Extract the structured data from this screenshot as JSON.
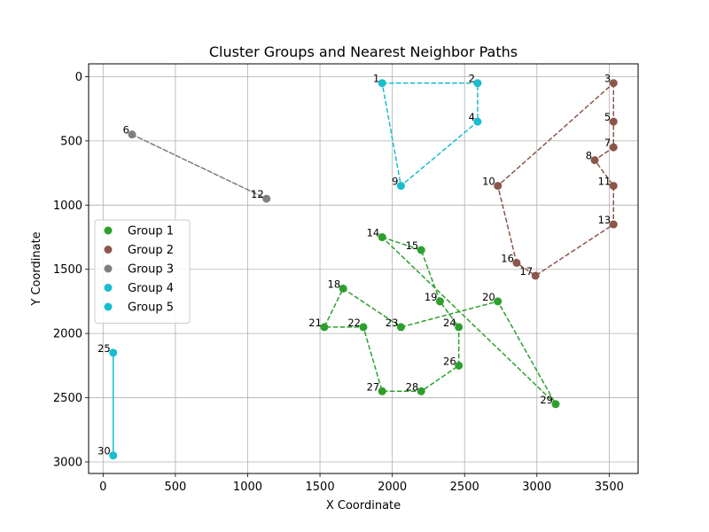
{
  "chart_data": {
    "type": "scatter",
    "title": "Cluster Groups and Nearest Neighbor Paths",
    "xlabel": "X Coordinate",
    "ylabel": "Y Coordinate",
    "xlim": [
      -100,
      3700
    ],
    "ylim": [
      3090,
      -100
    ],
    "y_inverted": true,
    "grid": true,
    "legend_placement": "center-left",
    "x_ticks": [
      0,
      500,
      1000,
      1500,
      2000,
      2500,
      3000,
      3500
    ],
    "y_ticks": [
      0,
      500,
      1000,
      1500,
      2000,
      2500,
      3000
    ],
    "points": [
      {
        "id": 1,
        "x": 1930,
        "y": 50
      },
      {
        "id": 2,
        "x": 2590,
        "y": 50
      },
      {
        "id": 3,
        "x": 3530,
        "y": 50
      },
      {
        "id": 4,
        "x": 2590,
        "y": 350
      },
      {
        "id": 5,
        "x": 3530,
        "y": 350
      },
      {
        "id": 6,
        "x": 200,
        "y": 450
      },
      {
        "id": 7,
        "x": 3530,
        "y": 550
      },
      {
        "id": 8,
        "x": 3400,
        "y": 650
      },
      {
        "id": 9,
        "x": 2060,
        "y": 850
      },
      {
        "id": 10,
        "x": 2730,
        "y": 850
      },
      {
        "id": 11,
        "x": 3530,
        "y": 850
      },
      {
        "id": 12,
        "x": 1130,
        "y": 950
      },
      {
        "id": 13,
        "x": 3530,
        "y": 1150
      },
      {
        "id": 14,
        "x": 1930,
        "y": 1250
      },
      {
        "id": 15,
        "x": 2200,
        "y": 1350
      },
      {
        "id": 16,
        "x": 2860,
        "y": 1450
      },
      {
        "id": 17,
        "x": 2990,
        "y": 1550
      },
      {
        "id": 18,
        "x": 1660,
        "y": 1650
      },
      {
        "id": 19,
        "x": 2330,
        "y": 1750
      },
      {
        "id": 20,
        "x": 2730,
        "y": 1750
      },
      {
        "id": 21,
        "x": 1530,
        "y": 1950
      },
      {
        "id": 22,
        "x": 1800,
        "y": 1950
      },
      {
        "id": 23,
        "x": 2060,
        "y": 1950
      },
      {
        "id": 24,
        "x": 2460,
        "y": 1950
      },
      {
        "id": 25,
        "x": 70,
        "y": 2150
      },
      {
        "id": 26,
        "x": 2460,
        "y": 2250
      },
      {
        "id": 27,
        "x": 1930,
        "y": 2450
      },
      {
        "id": 28,
        "x": 2200,
        "y": 2450
      },
      {
        "id": 29,
        "x": 3130,
        "y": 2550
      },
      {
        "id": 30,
        "x": 70,
        "y": 2950
      }
    ],
    "series": [
      {
        "name": "Group 1",
        "color": "#2ca02c",
        "line_style": "dashed",
        "point_ids": [
          14,
          15,
          18,
          19,
          20,
          21,
          22,
          23,
          24,
          26,
          27,
          28,
          29
        ],
        "path": [
          14,
          15,
          19,
          24,
          26,
          28,
          27,
          22,
          21,
          18,
          23,
          20,
          29,
          14
        ]
      },
      {
        "name": "Group 2",
        "color": "#8c564b",
        "line_style": "dashed",
        "point_ids": [
          3,
          5,
          7,
          8,
          10,
          11,
          13,
          16,
          17
        ],
        "path": [
          3,
          5,
          7,
          8,
          11,
          13,
          17,
          16,
          10,
          3
        ]
      },
      {
        "name": "Group 3",
        "color": "#7f7f7f",
        "line_style": "dashed",
        "point_ids": [
          6,
          12
        ],
        "path": [
          6,
          12,
          6
        ]
      },
      {
        "name": "Group 4",
        "color": "#17becf",
        "line_style": "dashed",
        "point_ids": [
          1,
          2,
          4,
          9
        ],
        "path": [
          1,
          2,
          4,
          9,
          1
        ]
      },
      {
        "name": "Group 5",
        "color": "#17becf",
        "line_style": "solid",
        "point_ids": [
          25,
          30
        ],
        "path": [
          25,
          30
        ]
      }
    ]
  }
}
